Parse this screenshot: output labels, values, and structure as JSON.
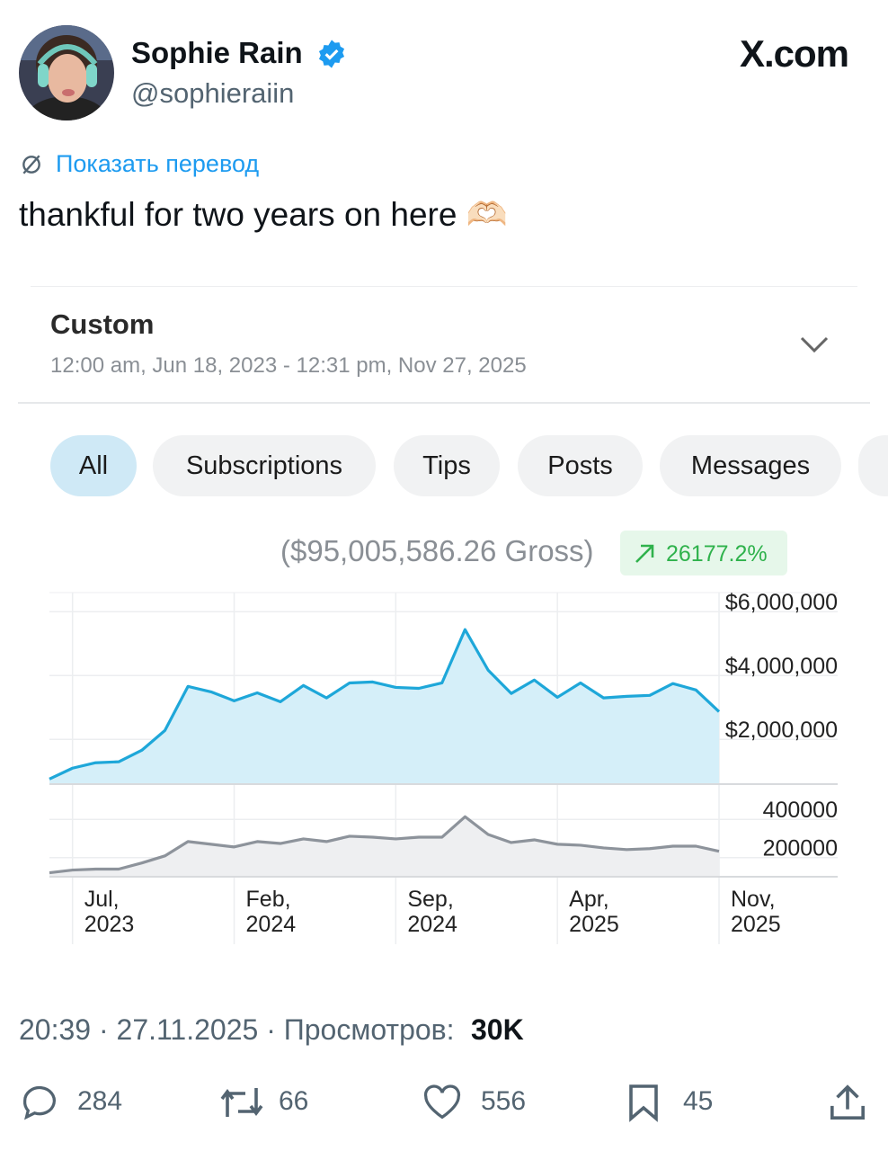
{
  "author": {
    "name": "Sophie Rain",
    "handle": "@sophieraiin"
  },
  "site": "X.com",
  "translate": "Показать перевод",
  "text": "thankful for two years on here 🫶🏻",
  "card": {
    "title": "Custom",
    "range": "12:00 am, Jun 18, 2023 - 12:31 pm, Nov 27, 2025",
    "tabs": [
      "All",
      "Subscriptions",
      "Tips",
      "Posts",
      "Messages"
    ],
    "gross": "($95,005,586.26 Gross)",
    "change": "26177.2%"
  },
  "chart_data": [
    {
      "type": "area",
      "series": [
        {
          "name": null,
          "color": "#1ea7d9",
          "fill": "#d5eff9",
          "values": [
            760000,
            1100000,
            1270000,
            1300000,
            1660000,
            2280000,
            3660000,
            3490000,
            3210000,
            3460000,
            3180000,
            3690000,
            3300000,
            3770000,
            3800000,
            3630000,
            3600000,
            3770000,
            5440000,
            4170000,
            3440000,
            3860000,
            3320000,
            3770000,
            3300000,
            3350000,
            3380000,
            3750000,
            3550000,
            2870000
          ]
        }
      ],
      "ylim": [
        600000,
        6600000
      ],
      "yticks": [
        {
          "value": 2000000,
          "label": "$2,000,000"
        },
        {
          "value": 4000000,
          "label": "$4,000,000"
        },
        {
          "value": 6000000,
          "label": "$6,000,000"
        }
      ],
      "grid": true
    },
    {
      "type": "area",
      "categories": [
        null,
        "Jul, 2023",
        null,
        null,
        null,
        null,
        null,
        null,
        "Feb, 2024",
        null,
        null,
        null,
        null,
        null,
        null,
        "Sep, 2024",
        null,
        null,
        null,
        null,
        null,
        null,
        "Apr, 2025",
        null,
        null,
        null,
        null,
        null,
        null,
        "Nov, 2025"
      ],
      "series": [
        {
          "name": null,
          "color": "#8d939b",
          "fill": "#eeeff1",
          "values": [
            121000,
            135000,
            140000,
            140000,
            172000,
            209000,
            284000,
            270000,
            256000,
            284000,
            274000,
            298000,
            284000,
            312000,
            307000,
            298000,
            307000,
            307000,
            414000,
            321000,
            279000,
            293000,
            270000,
            265000,
            251000,
            242000,
            247000,
            260000,
            260000,
            233000
          ]
        }
      ],
      "ylim": [
        100000,
        500000
      ],
      "yticks": [
        200000,
        400000
      ],
      "grid": true
    }
  ],
  "footer": {
    "time": "20:39 · 27.11.2025 · Просмотров:",
    "views": "30K"
  },
  "actions": {
    "replies": "284",
    "reposts": "66",
    "likes": "556",
    "bookmarks": "45"
  }
}
